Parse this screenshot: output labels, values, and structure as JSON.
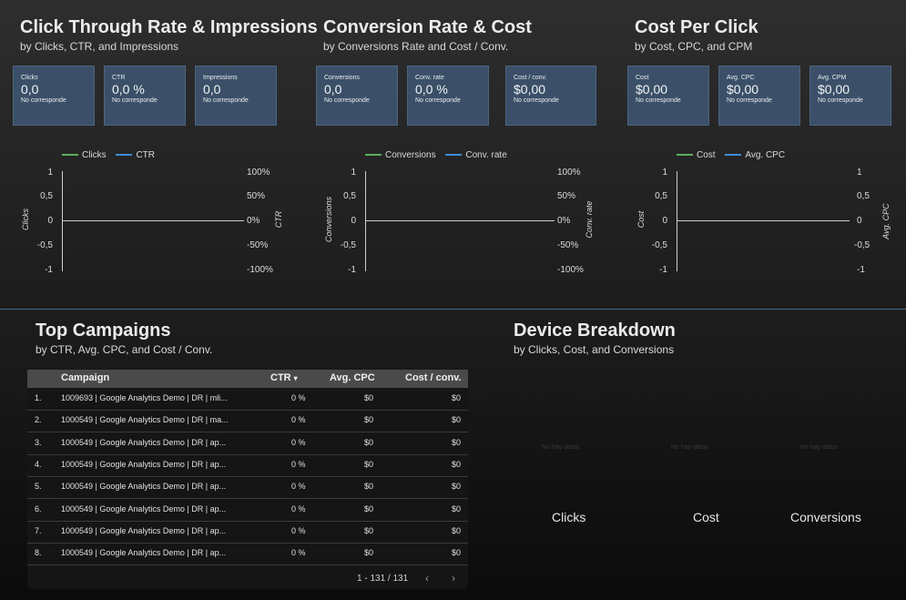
{
  "colors": {
    "green": "#5aae5a",
    "blue": "#3d8fd6"
  },
  "sections": {
    "ctr": {
      "title": "Click Through Rate & Impressions",
      "subtitle": "by Clicks, CTR, and Impressions"
    },
    "conv": {
      "title": "Conversion Rate & Cost",
      "subtitle": "by Conversions Rate and Cost / Conv."
    },
    "cpc": {
      "title": "Cost Per Click",
      "subtitle": "by Cost, CPC, and CPM"
    },
    "campaigns": {
      "title": "Top Campaigns",
      "subtitle": "by CTR, Avg. CPC, and Cost / Conv."
    },
    "device": {
      "title": "Device Breakdown",
      "subtitle": "by Clicks, Cost, and Conversions"
    }
  },
  "kpis": [
    {
      "label": "Clicks",
      "value": "0,0",
      "compare": "No corresponde"
    },
    {
      "label": "CTR",
      "value": "0,0 %",
      "compare": "No corresponde"
    },
    {
      "label": "Impressions",
      "value": "0,0",
      "compare": "No corresponde"
    },
    {
      "label": "Conversions",
      "value": "0,0",
      "compare": "No corresponde"
    },
    {
      "label": "Conv. rate",
      "value": "0,0 %",
      "compare": "No corresponde"
    },
    {
      "label": "Cost / conv.",
      "value": "$0,00",
      "compare": "No corresponde"
    },
    {
      "label": "Cost",
      "value": "$0,00",
      "compare": "No corresponde"
    },
    {
      "label": "Avg. CPC",
      "value": "$0,00",
      "compare": "No corresponde"
    },
    {
      "label": "Avg. CPM",
      "value": "$0,00",
      "compare": "No corresponde"
    }
  ],
  "chart_data": [
    {
      "type": "line",
      "series": [
        {
          "name": "Clicks",
          "values": []
        },
        {
          "name": "CTR",
          "values": []
        }
      ],
      "ylabel": "Clicks",
      "y2label": "CTR",
      "ylim": [
        -1,
        1
      ],
      "y2lim": [
        -1,
        1
      ],
      "left_ticks": [
        "1",
        "0,5",
        "0",
        "-0,5",
        "-1"
      ],
      "right_ticks": [
        "100%",
        "50%",
        "0%",
        "-50%",
        "-100%"
      ],
      "legend": "top"
    },
    {
      "type": "line",
      "series": [
        {
          "name": "Conversions",
          "values": []
        },
        {
          "name": "Conv. rate",
          "values": []
        }
      ],
      "ylabel": "Conversions",
      "y2label": "Conv. rate",
      "ylim": [
        -1,
        1
      ],
      "y2lim": [
        -1,
        1
      ],
      "left_ticks": [
        "1",
        "0,5",
        "0",
        "-0,5",
        "-1"
      ],
      "right_ticks": [
        "100%",
        "50%",
        "0%",
        "-50%",
        "-100%"
      ],
      "legend": "top"
    },
    {
      "type": "line",
      "series": [
        {
          "name": "Cost",
          "values": []
        },
        {
          "name": "Avg. CPC",
          "values": []
        }
      ],
      "ylabel": "Cost",
      "y2label": "Avg. CPC",
      "ylim": [
        -1,
        1
      ],
      "y2lim": [
        -1,
        1
      ],
      "left_ticks": [
        "1",
        "0,5",
        "0",
        "-0,5",
        "-1"
      ],
      "right_ticks": [
        "1",
        "0,5",
        "0",
        "-0,5",
        "-1"
      ],
      "legend": "top"
    }
  ],
  "table": {
    "headers": {
      "campaign": "Campaign",
      "ctr": "CTR",
      "cpc": "Avg. CPC",
      "cost_conv": "Cost / conv."
    },
    "sort_icon": "caret-down-icon",
    "rows": [
      {
        "n": "1.",
        "campaign": "1009693 | Google Analytics Demo | DR | mli...",
        "ctr": "0 %",
        "cpc": "$0",
        "cost_conv": "$0"
      },
      {
        "n": "2.",
        "campaign": "1000549 | Google Analytics Demo | DR | ma...",
        "ctr": "0 %",
        "cpc": "$0",
        "cost_conv": "$0"
      },
      {
        "n": "3.",
        "campaign": "1000549 | Google Analytics Demo | DR | ap...",
        "ctr": "0 %",
        "cpc": "$0",
        "cost_conv": "$0"
      },
      {
        "n": "4.",
        "campaign": "1000549 | Google Analytics Demo | DR | ap...",
        "ctr": "0 %",
        "cpc": "$0",
        "cost_conv": "$0"
      },
      {
        "n": "5.",
        "campaign": "1000549 | Google Analytics Demo | DR | ap...",
        "ctr": "0 %",
        "cpc": "$0",
        "cost_conv": "$0"
      },
      {
        "n": "6.",
        "campaign": "1000549 | Google Analytics Demo | DR | ap...",
        "ctr": "0 %",
        "cpc": "$0",
        "cost_conv": "$0"
      },
      {
        "n": "7.",
        "campaign": "1000549 | Google Analytics Demo | DR | ap...",
        "ctr": "0 %",
        "cpc": "$0",
        "cost_conv": "$0"
      },
      {
        "n": "8.",
        "campaign": "1000549 | Google Analytics Demo | DR | ap...",
        "ctr": "0 %",
        "cpc": "$0",
        "cost_conv": "$0"
      }
    ],
    "pagination": "1 - 131 / 131"
  },
  "device": {
    "nodata_text": "No hay datos",
    "labels": [
      "Clicks",
      "Cost",
      "Conversions"
    ]
  }
}
